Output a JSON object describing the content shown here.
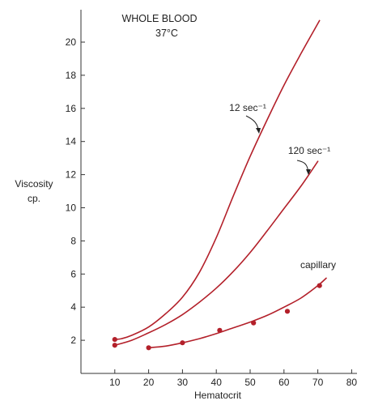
{
  "chart_data": {
    "type": "line",
    "title": "WHOLE BLOOD",
    "subtitle": "37°C",
    "xlabel": "Hematocrit",
    "ylabel_line1": "Viscosity",
    "ylabel_line2": "cp.",
    "xlim": [
      0,
      80
    ],
    "ylim": [
      0,
      21
    ],
    "x_ticks": [
      10,
      20,
      30,
      40,
      50,
      60,
      70,
      80
    ],
    "y_ticks": [
      2,
      4,
      6,
      8,
      10,
      12,
      14,
      16,
      18,
      20
    ],
    "grid": false,
    "colors": {
      "series": "#b3202a",
      "axis": "#333333"
    },
    "series": [
      {
        "name": "12 sec⁻¹",
        "curve_x": [
          10,
          12,
          15,
          20,
          25,
          30,
          35,
          40,
          45,
          50,
          55,
          60,
          65,
          70.5
        ],
        "curve_y": [
          2.05,
          2.1,
          2.3,
          2.8,
          3.6,
          4.6,
          6.1,
          8.2,
          10.7,
          13.1,
          15.3,
          17.4,
          19.3,
          21.3
        ],
        "points_x": [
          10
        ],
        "points_y": [
          2.05
        ]
      },
      {
        "name": "120 sec⁻¹",
        "curve_x": [
          10,
          15,
          20,
          25,
          30,
          35,
          40,
          45,
          50,
          55,
          60,
          65,
          70
        ],
        "curve_y": [
          1.7,
          2.0,
          2.45,
          2.95,
          3.55,
          4.3,
          5.15,
          6.15,
          7.3,
          8.6,
          9.95,
          11.3,
          12.8
        ],
        "points_x": [
          10
        ],
        "points_y": [
          1.7
        ]
      },
      {
        "name": "capillary",
        "curve_x": [
          20,
          25,
          30,
          35,
          40,
          45,
          50,
          55,
          60,
          65,
          70,
          72.5
        ],
        "curve_y": [
          1.55,
          1.65,
          1.85,
          2.1,
          2.4,
          2.75,
          3.1,
          3.5,
          4.0,
          4.55,
          5.3,
          5.75
        ],
        "points_x": [
          20,
          30,
          41,
          51,
          61,
          70.5
        ],
        "points_y": [
          1.55,
          1.85,
          2.6,
          3.05,
          3.75,
          5.3
        ]
      }
    ]
  }
}
